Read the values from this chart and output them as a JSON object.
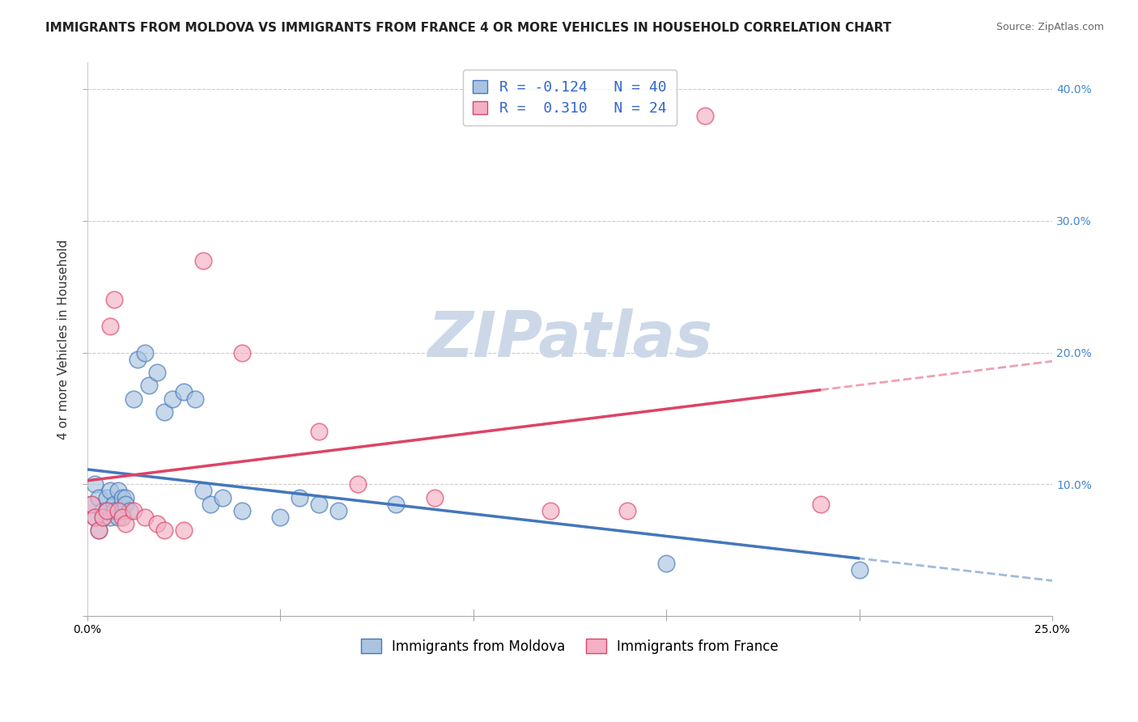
{
  "title": "IMMIGRANTS FROM MOLDOVA VS IMMIGRANTS FROM FRANCE 4 OR MORE VEHICLES IN HOUSEHOLD CORRELATION CHART",
  "source": "Source: ZipAtlas.com",
  "xlabel_bottom": [
    "Immigrants from Moldova",
    "Immigrants from France"
  ],
  "ylabel": "4 or more Vehicles in Household",
  "R_moldova": -0.124,
  "N_moldova": 40,
  "R_france": 0.31,
  "N_france": 24,
  "xlim": [
    0.0,
    0.25
  ],
  "ylim": [
    0.0,
    0.42
  ],
  "xticks": [
    0.0,
    0.05,
    0.1,
    0.15,
    0.2,
    0.25
  ],
  "yticks": [
    0.0,
    0.1,
    0.2,
    0.3,
    0.4
  ],
  "color_moldova": "#aac4e0",
  "color_france": "#f4b0c4",
  "line_color_moldova": "#4477bb",
  "line_color_france": "#dd4466",
  "watermark": "ZIPatlas",
  "watermark_color": "#ccd8e8",
  "background_color": "#ffffff",
  "grid_color": "#cccccc",
  "title_fontsize": 11,
  "axis_label_fontsize": 11,
  "tick_fontsize": 10,
  "legend_fontsize": 12,
  "moldova_x": [
    0.001,
    0.002,
    0.002,
    0.003,
    0.003,
    0.004,
    0.004,
    0.005,
    0.005,
    0.006,
    0.006,
    0.007,
    0.007,
    0.008,
    0.008,
    0.009,
    0.009,
    0.01,
    0.01,
    0.011,
    0.012,
    0.013,
    0.015,
    0.016,
    0.018,
    0.02,
    0.022,
    0.025,
    0.028,
    0.03,
    0.032,
    0.035,
    0.04,
    0.05,
    0.055,
    0.06,
    0.065,
    0.08,
    0.15,
    0.2
  ],
  "moldova_y": [
    0.085,
    0.1,
    0.075,
    0.065,
    0.09,
    0.08,
    0.075,
    0.09,
    0.08,
    0.095,
    0.075,
    0.085,
    0.08,
    0.095,
    0.075,
    0.09,
    0.08,
    0.09,
    0.085,
    0.08,
    0.165,
    0.195,
    0.2,
    0.175,
    0.185,
    0.155,
    0.165,
    0.17,
    0.165,
    0.095,
    0.085,
    0.09,
    0.08,
    0.075,
    0.09,
    0.085,
    0.08,
    0.085,
    0.04,
    0.035
  ],
  "france_x": [
    0.001,
    0.002,
    0.003,
    0.004,
    0.005,
    0.006,
    0.007,
    0.008,
    0.009,
    0.01,
    0.012,
    0.015,
    0.018,
    0.02,
    0.025,
    0.03,
    0.04,
    0.06,
    0.07,
    0.09,
    0.12,
    0.14,
    0.16,
    0.19
  ],
  "france_y": [
    0.085,
    0.075,
    0.065,
    0.075,
    0.08,
    0.22,
    0.24,
    0.08,
    0.075,
    0.07,
    0.08,
    0.075,
    0.07,
    0.065,
    0.065,
    0.27,
    0.2,
    0.14,
    0.1,
    0.09,
    0.08,
    0.08,
    0.38,
    0.085
  ]
}
